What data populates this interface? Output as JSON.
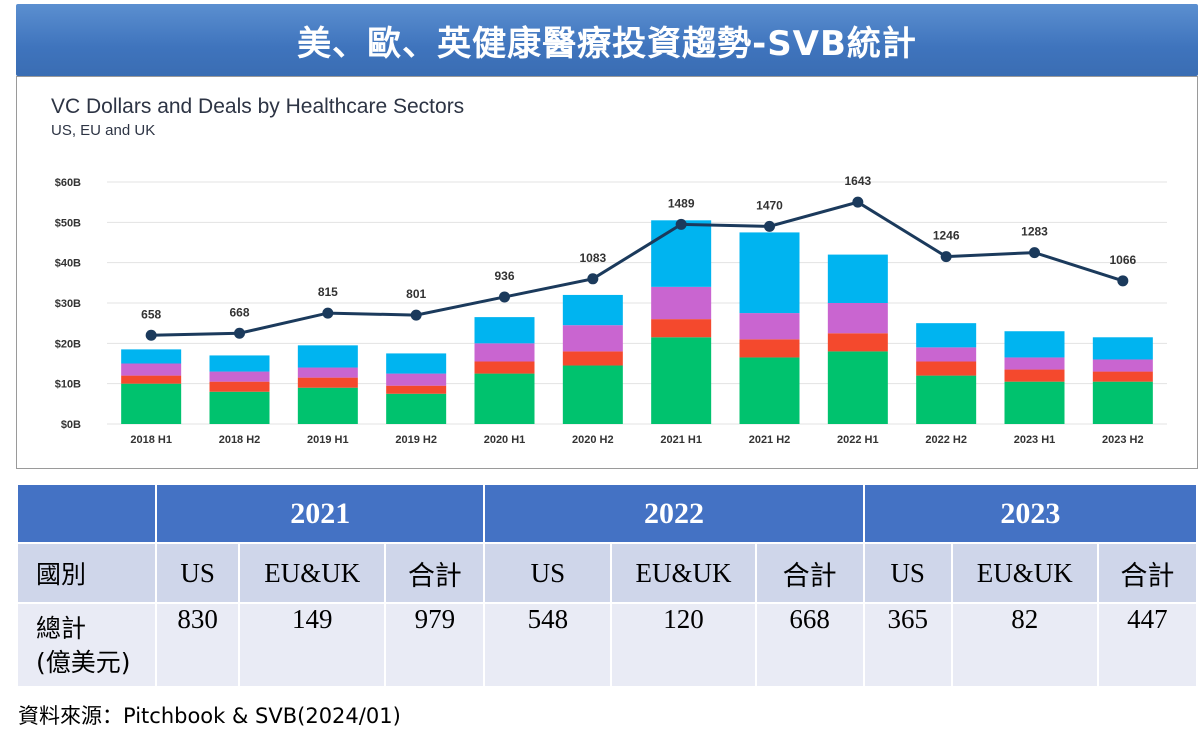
{
  "banner": {
    "title": "美、歐、英健康醫療投資趨勢-SVB統計"
  },
  "chart_data": {
    "type": "bar",
    "title": "VC Dollars and Deals by Healthcare Sectors",
    "subtitle": "US, EU and UK",
    "y_ticks": [
      "$0B",
      "$10B",
      "$20B",
      "$30B",
      "$40B",
      "$50B",
      "$60B"
    ],
    "ylim": [
      0,
      60
    ],
    "categories": [
      "2018 H1",
      "2018 H2",
      "2019 H1",
      "2019 H2",
      "2020 H1",
      "2020 H2",
      "2021 H1",
      "2021 H2",
      "2022 H1",
      "2022 H2",
      "2023 H1",
      "2023 H2"
    ],
    "series": [
      {
        "color": "#00c26e",
        "values": [
          10,
          8,
          9,
          7.5,
          12.5,
          14.5,
          21.5,
          16.5,
          18,
          12,
          10.5,
          10.5
        ]
      },
      {
        "color": "#f4492d",
        "values": [
          2,
          2.5,
          2.5,
          2,
          3,
          3.5,
          4.5,
          4.5,
          4.5,
          3.5,
          3,
          2.5
        ]
      },
      {
        "color": "#c965d0",
        "values": [
          3,
          2.5,
          2.5,
          3,
          4.5,
          6.5,
          8,
          6.5,
          7.5,
          3.5,
          3,
          3
        ]
      },
      {
        "color": "#00b4f0",
        "values": [
          3.5,
          4,
          5.5,
          5,
          6.5,
          7.5,
          16.5,
          20,
          12,
          6,
          6.5,
          5.5
        ]
      }
    ],
    "line": {
      "type": "line",
      "color": "#1b3a5c",
      "deals": [
        658,
        668,
        815,
        801,
        936,
        1083,
        1489,
        1470,
        1643,
        1246,
        1283,
        1066
      ],
      "plotted_dollar_level": [
        22,
        22.5,
        27.5,
        27,
        31.5,
        36,
        49.5,
        49,
        55,
        41.5,
        42.5,
        35.5
      ]
    },
    "grid": true
  },
  "table": {
    "years": [
      "2021",
      "2022",
      "2023"
    ],
    "col_headers": [
      "國別",
      "US",
      "EU&UK",
      "合計",
      "US",
      "EU&UK",
      "合計",
      "US",
      "EU&UK",
      "合計"
    ],
    "row_label_line1": "總計",
    "row_label_line2": "(億美元)",
    "values": [
      "830",
      "149",
      "979",
      "548",
      "120",
      "668",
      "365",
      "82",
      "447"
    ]
  },
  "source": "資料來源：Pitchbook & SVB(2024/01)"
}
